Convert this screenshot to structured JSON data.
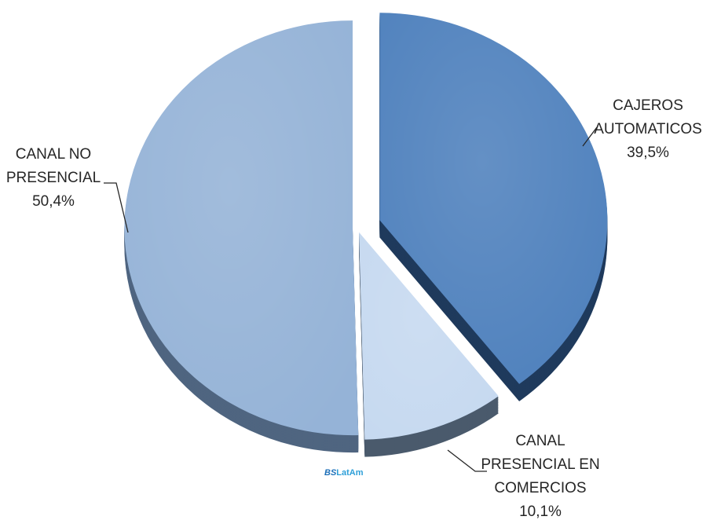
{
  "chart_data": {
    "type": "pie",
    "title": "",
    "slices": [
      {
        "label": "CAJEROS AUTOMATICOS",
        "lines": [
          "CAJEROS",
          "AUTOMATICOS",
          "39,5%"
        ],
        "value": 39.5,
        "color": "#4f81bd",
        "side": "#1f3a5c",
        "exploded": true
      },
      {
        "label": "CANAL PRESENCIAL EN COMERCIOS",
        "lines": [
          "CANAL",
          "PRESENCIAL EN",
          "COMERCIOS",
          "10,1%"
        ],
        "value": 10.1,
        "color": "#c6d9f0",
        "side": "#4a5a6c",
        "exploded": false
      },
      {
        "label": "CANAL NO PRESENCIAL",
        "lines": [
          "CANAL NO",
          "PRESENCIAL",
          "50,4%"
        ],
        "value": 50.4,
        "color": "#95b3d7",
        "side": "#4f6580",
        "exploded": false
      }
    ],
    "start_angle_deg": 0,
    "direction": "clockwise",
    "legend": "none",
    "data_labels": "outside-with-leader-lines"
  },
  "watermark": {
    "bold_part": "BS",
    "rest": "LatAm",
    "color": "#2e9fd8"
  }
}
